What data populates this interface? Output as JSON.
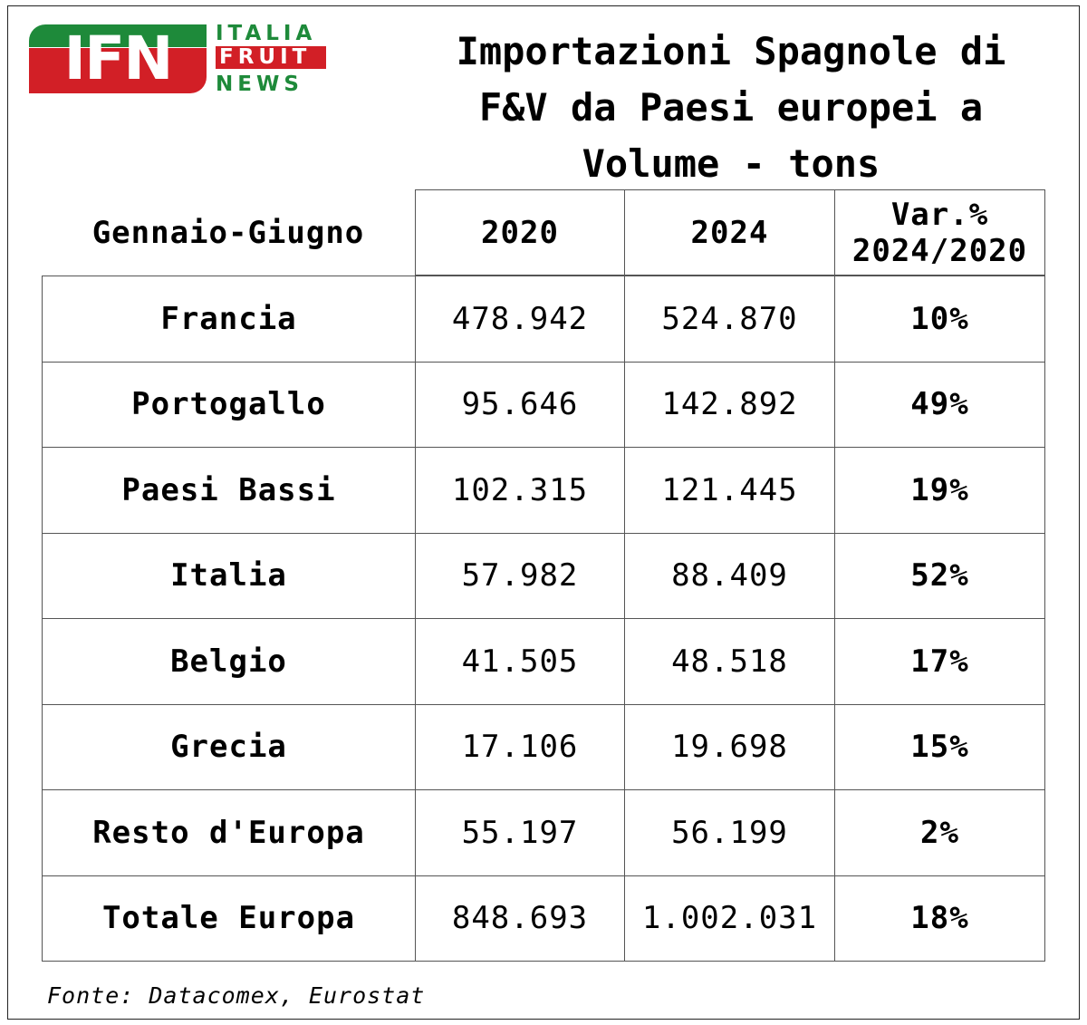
{
  "logo": {
    "mark": "IFN",
    "word1": "ITALIA",
    "word2": "FRUIT",
    "word3": "NEWS",
    "colors": {
      "green": "#1e8a3a",
      "red": "#d21f26",
      "white": "#ffffff"
    }
  },
  "title_lines": [
    "Importazioni Spagnole di",
    "F&V da Paesi europei a",
    "Volume - tons"
  ],
  "chart_data": {
    "type": "table",
    "title": "Importazioni Spagnole di F&V da Paesi europei a Volume - tons",
    "columns": [
      "Gennaio-Giugno",
      "2020",
      "2024",
      "Var.% 2024/2020"
    ],
    "header": {
      "period": "Gennaio-Giugno",
      "col2020": "2020",
      "col2024": "2024",
      "var_line1": "Var.%",
      "var_line2": "2024/2020"
    },
    "rows": [
      {
        "country": "Francia",
        "y2020": "478.942",
        "y2024": "524.870",
        "var": "10%"
      },
      {
        "country": "Portogallo",
        "y2020": "95.646",
        "y2024": "142.892",
        "var": "49%"
      },
      {
        "country": "Paesi Bassi",
        "y2020": "102.315",
        "y2024": "121.445",
        "var": "19%"
      },
      {
        "country": "Italia",
        "y2020": "57.982",
        "y2024": "88.409",
        "var": "52%"
      },
      {
        "country": "Belgio",
        "y2020": "41.505",
        "y2024": "48.518",
        "var": "17%"
      },
      {
        "country": "Grecia",
        "y2020": "17.106",
        "y2024": "19.698",
        "var": "15%"
      },
      {
        "country": "Resto d'Europa",
        "y2020": "55.197",
        "y2024": "56.199",
        "var": "2%"
      },
      {
        "country": "Totale Europa",
        "y2020": "848.693",
        "y2024": "1.002.031",
        "var": "18%"
      }
    ]
  },
  "source": "Fonte: Datacomex, Eurostat"
}
